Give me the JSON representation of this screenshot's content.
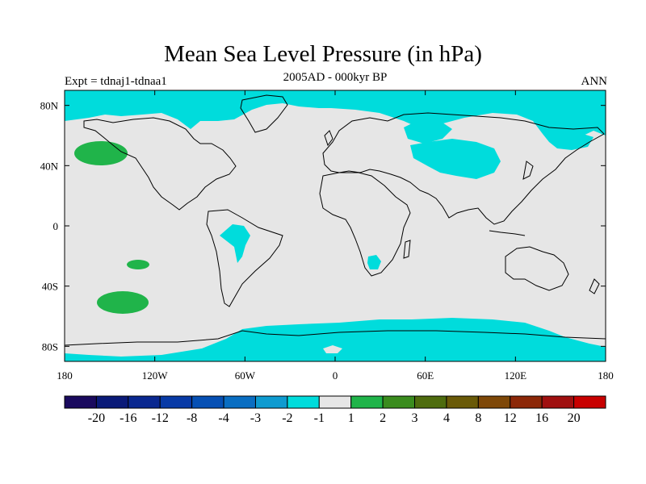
{
  "header": {
    "title": "Mean Sea Level Pressure (in hPa)",
    "period": "2005AD - 000kyr BP",
    "experiment": "Expt = tdnaj1-tdnaa1",
    "season": "ANN"
  },
  "map": {
    "projection": "cylindrical-equidistant",
    "lon_range": [
      -180,
      180
    ],
    "lat_range": [
      -90,
      90
    ],
    "background_color": "#e6e6e6",
    "coastline_color": "#000000",
    "x_ticks": [
      "180",
      "120W",
      "60W",
      "0",
      "60E",
      "120E",
      "180"
    ],
    "y_ticks": [
      "80N",
      "40N",
      "0",
      "40S",
      "80S"
    ]
  },
  "colorbar": {
    "colors": [
      "#1a0a5e",
      "#0a1a78",
      "#0a2890",
      "#083aa6",
      "#0650b4",
      "#0a6ec2",
      "#0e9bd0",
      "#00dcdc",
      "#e6e6e6",
      "#20b44a",
      "#3a8c1e",
      "#4e6c0e",
      "#6a5a08",
      "#7e4808",
      "#8c2808",
      "#a01010",
      "#c80000"
    ],
    "labels": [
      "-20",
      "-16",
      "-12",
      "-8",
      "-4",
      "-3",
      "-2",
      "-1",
      "1",
      "2",
      "3",
      "4",
      "8",
      "12",
      "16",
      "20"
    ]
  }
}
